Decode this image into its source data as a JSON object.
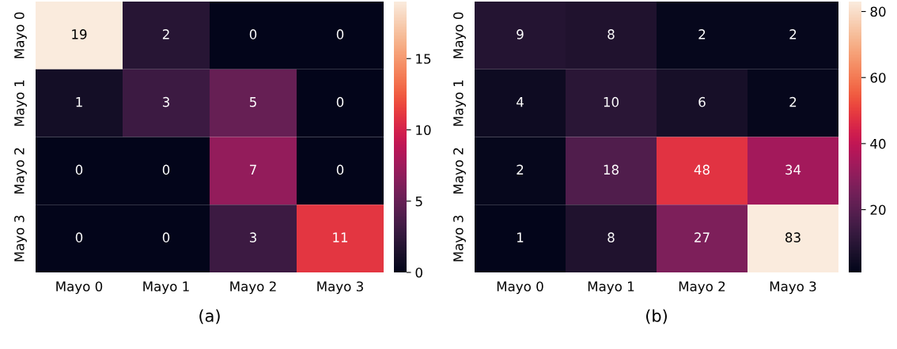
{
  "chart_data": [
    {
      "type": "heatmap",
      "xlabel": "(a)",
      "categories": [
        "Mayo 0",
        "Mayo 1",
        "Mayo 2",
        "Mayo 3"
      ],
      "y_categories": [
        "Mayo 0",
        "Mayo 1",
        "Mayo 2",
        "Mayo 3"
      ],
      "cells": [
        [
          19,
          2,
          0,
          0
        ],
        [
          1,
          3,
          5,
          0
        ],
        [
          0,
          0,
          7,
          0
        ],
        [
          0,
          0,
          3,
          11
        ]
      ],
      "data_labels": true,
      "clim": [
        0,
        19
      ],
      "cticks": [
        0,
        5,
        10,
        15
      ]
    },
    {
      "type": "heatmap",
      "xlabel": "(b)",
      "categories": [
        "Mayo 0",
        "Mayo 1",
        "Mayo 2",
        "Mayo 3"
      ],
      "y_categories": [
        "Mayo 0",
        "Mayo 1",
        "Mayo 2",
        "Mayo 3"
      ],
      "cells": [
        [
          9,
          8,
          2,
          2
        ],
        [
          4,
          10,
          6,
          2
        ],
        [
          2,
          18,
          48,
          34
        ],
        [
          1,
          8,
          27,
          83
        ]
      ],
      "data_labels": true,
      "clim": [
        1,
        83
      ],
      "cticks": [
        20,
        40,
        60,
        80
      ]
    }
  ]
}
